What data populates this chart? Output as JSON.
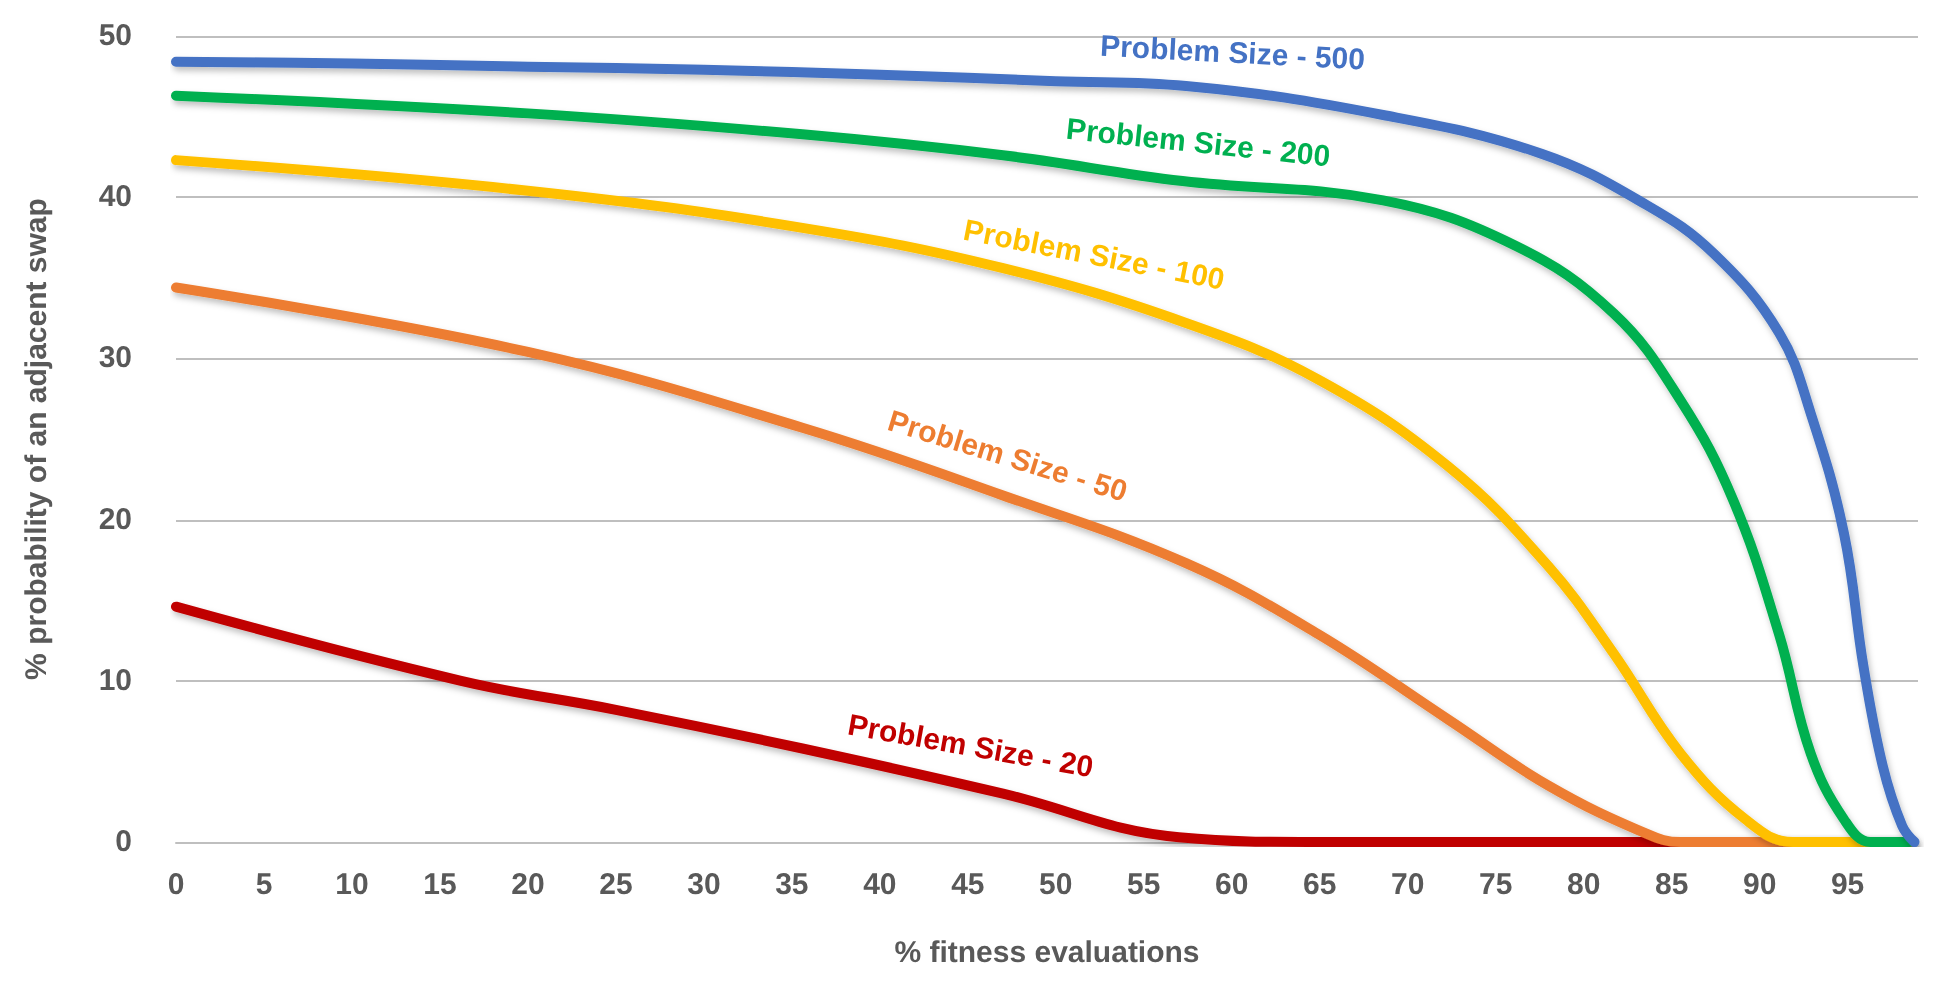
{
  "chart_data": {
    "type": "line",
    "xlabel": "% fitness evaluations",
    "ylabel": "% probability of an adjacent swap",
    "xlim": [
      0,
      99
    ],
    "xticks": [
      0,
      5,
      10,
      15,
      20,
      25,
      30,
      35,
      40,
      45,
      50,
      55,
      60,
      65,
      70,
      75,
      80,
      85,
      90,
      95
    ],
    "ylim": [
      0,
      50
    ],
    "yticks": [
      0,
      10,
      20,
      30,
      40,
      50
    ],
    "grid": "y",
    "legend": false,
    "marker": "none",
    "line_style": "solid",
    "series": [
      {
        "name": "Problem Size - 500",
        "color": "#4472c4",
        "x": [
          0,
          10,
          20,
          30,
          40,
          50,
          57.4,
          68.6,
          77.6,
          83.6,
          87.4,
          91.1,
          92.9,
          94.8,
          95.9,
          97,
          98.1,
          98.8
        ],
        "values": [
          48.4,
          48.3,
          48.1,
          47.9,
          47.6,
          47.2,
          46.9,
          45.1,
          42.7,
          39.5,
          36.5,
          31.6,
          26.6,
          19.1,
          10.9,
          4.7,
          1,
          0
        ]
      },
      {
        "name": "Problem Size - 200",
        "color": "#00b050",
        "x": [
          0,
          20,
          35.6,
          47,
          57.2,
          68.6,
          76.1,
          81.7,
          85.5,
          88.5,
          91.1,
          92.9,
          94.8,
          96.3,
          98.5
        ],
        "values": [
          46.3,
          45.2,
          43.9,
          42.6,
          41,
          39.8,
          37,
          32.8,
          27.4,
          21.2,
          12.9,
          5.5,
          1.4,
          0,
          0
        ]
      },
      {
        "name": "Problem Size - 100",
        "color": "#ffc000",
        "x": [
          0,
          20,
          35.6,
          47,
          57.4,
          64.9,
          72.3,
          78,
          81.7,
          85.5,
          89.2,
          91.9,
          98.5
        ],
        "values": [
          42.3,
          40.4,
          38.1,
          35.6,
          32.2,
          28.7,
          23.3,
          17.1,
          11.7,
          5.5,
          1.4,
          0,
          0
        ]
      },
      {
        "name": "Problem Size - 50",
        "color": "#ed7d31",
        "x": [
          0,
          20,
          35.6,
          47,
          57.4,
          64.9,
          72.3,
          78,
          83.6,
          85.5,
          98.5
        ],
        "values": [
          34.4,
          30.4,
          25.7,
          21.5,
          17.3,
          12.9,
          7.6,
          3.5,
          0.5,
          0,
          0
        ]
      },
      {
        "name": "Problem Size - 20",
        "color": "#c00000",
        "x": [
          0,
          16.2,
          25,
          35.6,
          47,
          57,
          65,
          98.5
        ],
        "values": [
          14.6,
          10,
          8.2,
          5.8,
          3,
          0.3,
          0,
          0
        ]
      }
    ]
  }
}
